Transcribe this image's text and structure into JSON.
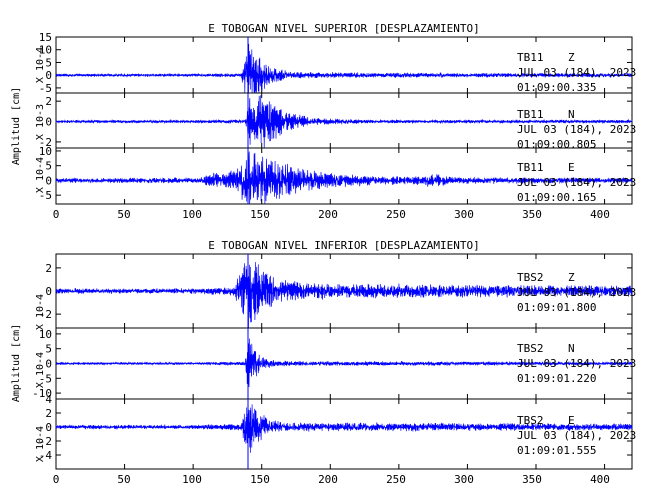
{
  "chart_data": [
    {
      "type": "line",
      "title": "E TOBOGAN NIVEL SUPERIOR [DESPLAZAMIENTO]",
      "ylabel": "Amplitud [cm]",
      "xlim": [
        0,
        420
      ],
      "xticks": [
        "0",
        "50",
        "100",
        "150",
        "200",
        "250",
        "300",
        "350",
        "400"
      ],
      "event_time": 140,
      "color": "#0000ff",
      "traces": [
        {
          "station": "TB11",
          "component": "Z",
          "date": "JUL 03 (184), 2023",
          "time": "01:09:00.335",
          "multiplier": "X 10-4",
          "ylim": [
            -7,
            15
          ],
          "yticks": [
            "15",
            "10",
            "5",
            "0",
            "-5"
          ],
          "noise": 0.3,
          "peak": 9,
          "decay": 9,
          "ring": 14,
          "envelope": [
            [
              100,
              0.4
            ],
            [
              135,
              0.6
            ],
            [
              140,
              10
            ],
            [
              147,
              7
            ],
            [
              155,
              3
            ],
            [
              170,
              1.2
            ],
            [
              200,
              0.8
            ],
            [
              420,
              0.6
            ]
          ]
        },
        {
          "station": "TB11",
          "component": "N",
          "date": "JUL 03 (184), 2023",
          "time": "01:09:00.805",
          "multiplier": "X 10-3",
          "ylim": [
            -2.6,
            2.8
          ],
          "yticks": [
            "2",
            "0",
            "-2"
          ],
          "noise": 0.08,
          "peak": 2.3,
          "decay": 18,
          "ring": 11,
          "envelope": [
            [
              100,
              0.1
            ],
            [
              138,
              0.15
            ],
            [
              141,
              1.8
            ],
            [
              148,
              2.3
            ],
            [
              158,
              1.6
            ],
            [
              170,
              0.7
            ],
            [
              190,
              0.3
            ],
            [
              230,
              0.12
            ],
            [
              420,
              0.12
            ]
          ]
        },
        {
          "station": "TB11",
          "component": "E",
          "date": "JUL 03 (184), 2023",
          "time": "01:09:00.165",
          "multiplier": "X 10-4",
          "ylim": [
            -8,
            11
          ],
          "yticks": [
            "10",
            "5",
            "0",
            "-5"
          ],
          "noise": 0.6,
          "peak": 7,
          "decay": 30,
          "ring": 9,
          "envelope": [
            [
              0,
              0.5
            ],
            [
              105,
              0.6
            ],
            [
              115,
              2
            ],
            [
              130,
              2.5
            ],
            [
              140,
              8
            ],
            [
              148,
              7.5
            ],
            [
              158,
              6
            ],
            [
              165,
              5
            ],
            [
              180,
              3
            ],
            [
              200,
              2.2
            ],
            [
              230,
              1.2
            ],
            [
              260,
              1.0
            ],
            [
              280,
              1.8
            ],
            [
              290,
              0.8
            ],
            [
              420,
              0.6
            ]
          ]
        }
      ]
    },
    {
      "type": "line",
      "title": "E TOBOGAN NIVEL INFERIOR [DESPLAZAMIENTO]",
      "ylabel": "Amplitud [cm]",
      "xlim": [
        0,
        420
      ],
      "xticks": [
        "0",
        "50",
        "100",
        "150",
        "200",
        "250",
        "300",
        "350",
        "400"
      ],
      "event_time": 140,
      "color": "#0000ff",
      "traces": [
        {
          "station": "TBS2",
          "component": "Z",
          "date": "JUL 03 (184), 2023",
          "time": "01:09:01.800",
          "multiplier": "X 10-4",
          "ylim": [
            -3.2,
            3.2
          ],
          "yticks": [
            "2",
            "0",
            "-2"
          ],
          "noise": 0.15,
          "peak": 2.8,
          "decay": 10,
          "ring": 12,
          "envelope": [
            [
              100,
              0.15
            ],
            [
              130,
              0.3
            ],
            [
              140,
              2.8
            ],
            [
              148,
              1.8
            ],
            [
              160,
              0.8
            ],
            [
              200,
              0.5
            ],
            [
              420,
              0.35
            ]
          ]
        },
        {
          "station": "TBS2",
          "component": "N",
          "date": "JUL 03 (184), 2023",
          "time": "01:09:01.220",
          "multiplier": "X 10-4",
          "ylim": [
            -12,
            12
          ],
          "yticks": [
            "10",
            "5",
            "0",
            "-5",
            "-10"
          ],
          "noise": 0.3,
          "peak": 10,
          "decay": 6,
          "ring": 14,
          "envelope": [
            [
              100,
              0.3
            ],
            [
              138,
              0.5
            ],
            [
              140,
              10
            ],
            [
              146,
              3
            ],
            [
              155,
              1.2
            ],
            [
              170,
              0.6
            ],
            [
              420,
              0.4
            ]
          ]
        },
        {
          "station": "TBS2",
          "component": "E",
          "date": "JUL 03 (184), 2023",
          "time": "01:09:01.555",
          "multiplier": "X 10-4",
          "ylim": [
            -6,
            4
          ],
          "yticks": [
            "4",
            "2",
            "0",
            "-2",
            "-4"
          ],
          "noise": 0.2,
          "peak": 4,
          "decay": 7,
          "ring": 13,
          "envelope": [
            [
              100,
              0.2
            ],
            [
              135,
              0.4
            ],
            [
              140,
              4
            ],
            [
              146,
              2
            ],
            [
              155,
              0.9
            ],
            [
              170,
              0.5
            ],
            [
              420,
              0.35
            ]
          ]
        }
      ]
    }
  ]
}
